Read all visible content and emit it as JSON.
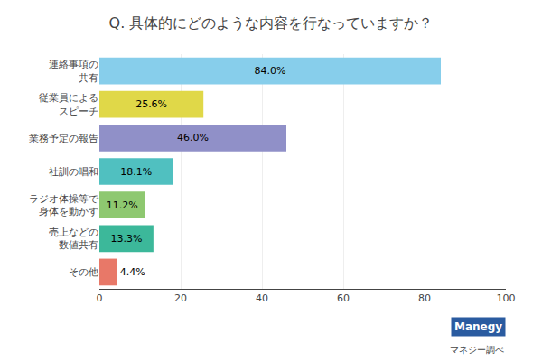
{
  "chart_data": {
    "type": "bar",
    "orientation": "horizontal",
    "title": "Q. 具体的にどのような内容を行なっていますか？",
    "categories": [
      "連絡事項の\n共有",
      "従業員による\nスピーチ",
      "業務予定の報告",
      "社訓の唱和",
      "ラジオ体操等で\n身体を動かす",
      "売上などの\n数値共有",
      "その他"
    ],
    "values": [
      84.0,
      25.6,
      46.0,
      18.1,
      11.2,
      13.3,
      4.4
    ],
    "value_labels": [
      "84.0%",
      "25.6%",
      "46.0%",
      "18.1%",
      "11.2%",
      "13.3%",
      "4.4%"
    ],
    "data_labels": true,
    "colors": [
      "#87CEEB",
      "#E0D848",
      "#9090C8",
      "#50C0C0",
      "#8EC870",
      "#3CB89A",
      "#E87868"
    ],
    "xlim": [
      0,
      100
    ],
    "xticks": [
      0,
      20,
      40,
      60,
      80,
      100
    ],
    "grid": true,
    "annotations": [
      {
        "text": "Manegy",
        "color": "#2A5BA0"
      },
      {
        "text": "マネジー調べ"
      }
    ]
  }
}
